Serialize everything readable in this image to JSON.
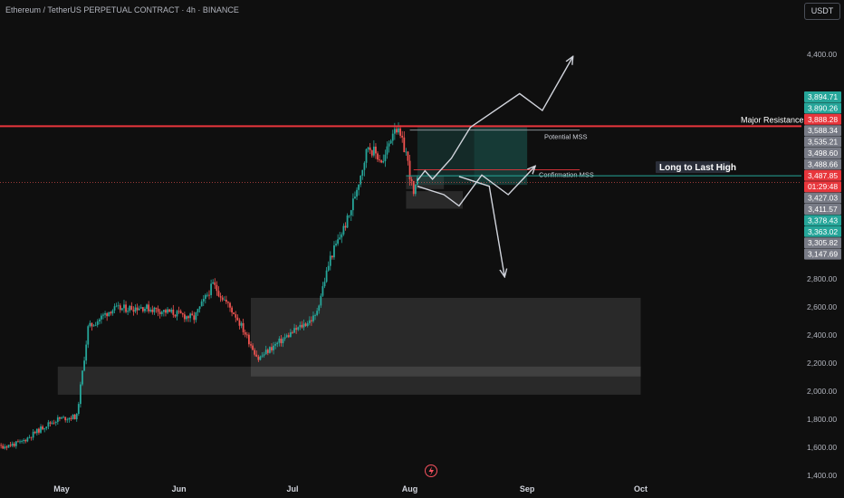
{
  "header": {
    "title": "Ethereum / TetherUS PERPETUAL CONTRACT · 4h · BINANCE",
    "currency": "USDT"
  },
  "colors": {
    "background": "#0f0f0f",
    "up": "#26a69a",
    "down": "#ef5350",
    "resistance": "#e8363c",
    "mss_line": "#26a69a",
    "zone": "#ffffff",
    "position_fill": "#1f5f5a",
    "grid_text": "#b2b5be"
  },
  "chart_data": {
    "type": "candlestick",
    "symbol": "ETHUSDT.P",
    "timeframe": "4h",
    "y_axis": {
      "ticks": [
        "4,400.00",
        "2,800.00",
        "2,600.00",
        "2,400.00",
        "2,200.00",
        "2,000.00",
        "1,800.00",
        "1,600.00",
        "1,400.00"
      ],
      "range": [
        1380,
        4630
      ]
    },
    "x_axis": {
      "ticks": [
        "May",
        "Jun",
        "Jul",
        "Aug",
        "Sep",
        "Oct"
      ]
    },
    "price_labels": [
      {
        "text": "3,894.71",
        "color": "#26a69a"
      },
      {
        "text": "3,890.26",
        "color": "#26a69a"
      },
      {
        "text": "3,888.28",
        "color": "#e8363c"
      },
      {
        "text": "3,588.34",
        "color": "#787b86"
      },
      {
        "text": "3,535.21",
        "color": "#787b86"
      },
      {
        "text": "3,498.60",
        "color": "#787b86"
      },
      {
        "text": "3,488.66",
        "color": "#787b86"
      },
      {
        "text": "3,487.85",
        "color": "#e8363c"
      },
      {
        "text": "01:29:48",
        "color": "#e8363c"
      },
      {
        "text": "3,427.03",
        "color": "#787b86"
      },
      {
        "text": "3,411.57",
        "color": "#787b86"
      },
      {
        "text": "3,378.43",
        "color": "#26a69a"
      },
      {
        "text": "3,363.02",
        "color": "#26a69a"
      },
      {
        "text": "3,305.82",
        "color": "#787b86"
      },
      {
        "text": "3,147.69",
        "color": "#787b86"
      }
    ],
    "annotations": {
      "major_resistance": {
        "label": "Major Resistance",
        "price": 3888
      },
      "potential_mss": {
        "label": "Potential MSS"
      },
      "confirmation_mss": {
        "label": "Confirmation MSS"
      },
      "long_to_last_high": {
        "label": "Long to Last High"
      }
    },
    "zones": [
      {
        "name": "demand-zone-upper",
        "from": "Jul 31",
        "to": "Aug 10",
        "top": 3530,
        "bottom": 3440
      },
      {
        "name": "demand-zone-lower",
        "from": "Jul 31",
        "to": "Aug 15",
        "top": 3425,
        "bottom": 3300
      },
      {
        "name": "consolidation-range",
        "from": "Jun 20",
        "to": "Oct",
        "top": 2665,
        "bottom": 2105
      },
      {
        "name": "support-zone",
        "from": "Apr 30",
        "to": "Oct",
        "top": 2175,
        "bottom": 1975
      }
    ],
    "price_path_waypoints": [
      {
        "date": "Apr 5",
        "price": 1540
      },
      {
        "date": "Apr 12",
        "price": 1590
      },
      {
        "date": "Apr 20",
        "price": 1630
      },
      {
        "date": "Apr 27",
        "price": 1760
      },
      {
        "date": "Apr 30",
        "price": 1800
      },
      {
        "date": "May 5",
        "price": 1820
      },
      {
        "date": "May 8",
        "price": 2450
      },
      {
        "date": "May 14",
        "price": 2580
      },
      {
        "date": "May 22",
        "price": 2600
      },
      {
        "date": "May 30",
        "price": 2560
      },
      {
        "date": "Jun 5",
        "price": 2520
      },
      {
        "date": "Jun 10",
        "price": 2760
      },
      {
        "date": "Jun 16",
        "price": 2540
      },
      {
        "date": "Jun 22",
        "price": 2230
      },
      {
        "date": "Jun 25",
        "price": 2300
      },
      {
        "date": "Jul 1",
        "price": 2420
      },
      {
        "date": "Jul 7",
        "price": 2530
      },
      {
        "date": "Jul 11",
        "price": 2950
      },
      {
        "date": "Jul 16",
        "price": 3250
      },
      {
        "date": "Jul 21",
        "price": 3750
      },
      {
        "date": "Jul 25",
        "price": 3630
      },
      {
        "date": "Jul 28",
        "price": 3900
      },
      {
        "date": "Jul 31",
        "price": 3700
      },
      {
        "date": "Aug 2",
        "price": 3390
      },
      {
        "date": "Aug 3",
        "price": 3488
      }
    ],
    "projection_paths": [
      {
        "name": "bullish-projection",
        "points": [
          {
            "date": "Aug 3",
            "price": 3500
          },
          {
            "date": "Aug 5",
            "price": 3570
          },
          {
            "date": "Aug 7",
            "price": 3510
          },
          {
            "date": "Aug 12",
            "price": 3660
          },
          {
            "date": "Aug 17",
            "price": 3880
          },
          {
            "date": "Aug 30",
            "price": 4120
          },
          {
            "date": "Sep 5",
            "price": 4000
          },
          {
            "date": "Sep 13",
            "price": 4380
          }
        ]
      },
      {
        "name": "bearish-projection",
        "points": [
          {
            "date": "Aug 3",
            "price": 3460
          },
          {
            "date": "Aug 10",
            "price": 3400
          },
          {
            "date": "Aug 14",
            "price": 3320
          },
          {
            "date": "Aug 20",
            "price": 3540
          },
          {
            "date": "Aug 27",
            "price": 3400
          },
          {
            "date": "Sep 3",
            "price": 3600
          }
        ]
      },
      {
        "name": "breakdown-projection",
        "points": [
          {
            "date": "Aug 14",
            "price": 3530
          },
          {
            "date": "Aug 22",
            "price": 3460
          },
          {
            "date": "Aug 26",
            "price": 2820
          }
        ]
      }
    ]
  }
}
